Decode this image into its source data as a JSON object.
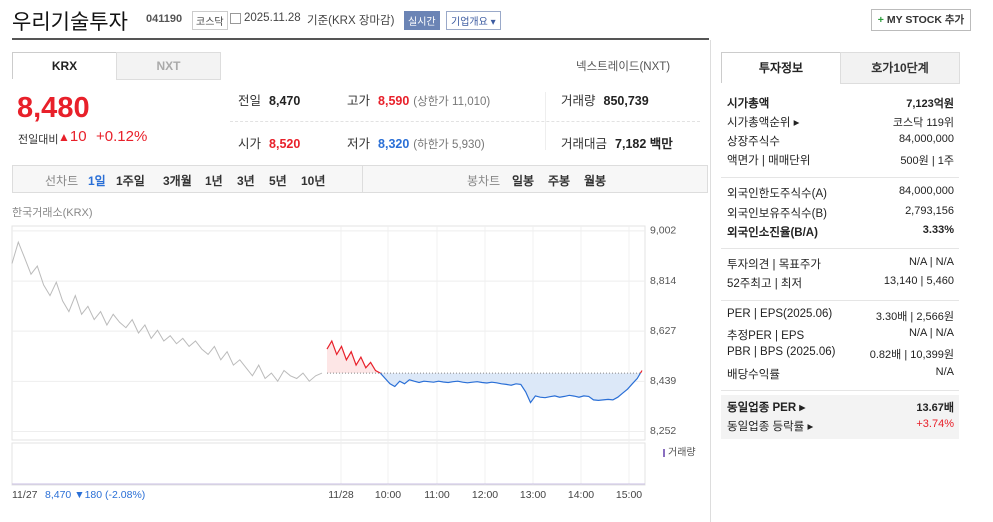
{
  "header": {
    "name": "우리기술투자",
    "code": "041190",
    "market": "코스닥",
    "date": "2025.11.28",
    "basis": "기준(KRX 장마감)",
    "realtime": "실시간",
    "overview": "기업개요",
    "mystock": "MY STOCK 추가"
  },
  "tabs": [
    "KRX",
    "NXT"
  ],
  "nxt_link": "넥스트레이드(NXT)",
  "price": {
    "now": "8,480",
    "change_label": "전일대비",
    "change": "10",
    "rate": "+0.12%"
  },
  "quote": [
    {
      "label": "전일",
      "value": "8,470",
      "color": "#222222"
    },
    {
      "label": "고가",
      "value": "8,590",
      "note": "(상한가 11,010)",
      "color": "#e8202a"
    },
    {
      "label": "거래량",
      "value": "850,739",
      "color": "#222222"
    },
    {
      "label": "시가",
      "value": "8,520",
      "color": "#e8202a"
    },
    {
      "label": "저가",
      "value": "8,320",
      "note": "(하한가 5,930)",
      "color": "#2a6fd6"
    },
    {
      "label": "거래대금",
      "value": "7,182 백만",
      "color": "#222222"
    }
  ],
  "range": {
    "line_label": "선차트",
    "line": [
      "1일",
      "1주일",
      "3개월",
      "1년",
      "3년",
      "5년",
      "10년"
    ],
    "candle_label": "봉차트",
    "candle": [
      "일봉",
      "주봉",
      "월봉"
    ]
  },
  "chart": {
    "type": "line",
    "source": "한국거래소(KRX)",
    "ylim": [
      8235,
      9020
    ],
    "yticks": [
      {
        "value": 9002,
        "label": "9,002"
      },
      {
        "value": 8814,
        "label": "8,814"
      },
      {
        "value": 8627,
        "label": "8,627"
      },
      {
        "value": 8439,
        "label": "8,439"
      },
      {
        "value": 8252,
        "label": "8,252"
      }
    ],
    "xticks": [
      "11/27",
      "11/28",
      "10:00",
      "11:00",
      "12:00",
      "13:00",
      "14:00",
      "15:00"
    ],
    "prev_close_summary": "8,470 ▼180 (-2.08%)",
    "baseline": 8470,
    "volume_label": "거래량",
    "series": [
      {
        "color": "#bbbbbb",
        "values": [
          8880,
          8960,
          8900,
          8840,
          8870,
          8800,
          8760,
          8810,
          8740,
          8700,
          8760,
          8690,
          8720,
          8670,
          8700,
          8650,
          8690,
          8660,
          8640,
          8670,
          8620,
          8650,
          8600,
          8630,
          8590,
          8610,
          8580,
          8600,
          8570,
          8590,
          8560,
          8540,
          8570,
          8520,
          8550,
          8500,
          8520,
          8490,
          8460,
          8500,
          8450,
          8470,
          8440,
          8480,
          8460,
          8450,
          8470,
          8440,
          8460,
          8470
        ]
      },
      {
        "color": "#2a6fd6",
        "up_color": "#e8202a",
        "values": [
          8560,
          8590,
          8540,
          8570,
          8520,
          8550,
          8500,
          8530,
          8490,
          8510,
          8480,
          8470,
          8450,
          8430,
          8420,
          8440,
          8430,
          8445,
          8440,
          8435,
          8440,
          8438,
          8436,
          8440,
          8437,
          8435,
          8438,
          8440,
          8436,
          8434,
          8436,
          8438,
          8435,
          8433,
          8436,
          8434,
          8430,
          8428,
          8425,
          8430,
          8428,
          8400,
          8360,
          8385,
          8380,
          8378,
          8382,
          8385,
          8380,
          8383,
          8387,
          8384,
          8380,
          8385,
          8383,
          8370,
          8368,
          8370,
          8372,
          8370,
          8380,
          8395,
          8410,
          8430,
          8450,
          8480
        ]
      }
    ]
  },
  "info_tabs": [
    "투자정보",
    "호가10단계"
  ],
  "info": [
    [
      {
        "label": "시가총액",
        "value": "7,123억원",
        "strong": true
      },
      {
        "label": "시가총액순위 ▸",
        "value": "코스닥 119위"
      },
      {
        "label": "상장주식수",
        "value": "84,000,000"
      },
      {
        "label": "액면가 | 매매단위",
        "value": "500원 | 1주"
      }
    ],
    [
      {
        "label": "외국인한도주식수(A)",
        "value": "84,000,000"
      },
      {
        "label": "외국인보유주식수(B)",
        "value": "2,793,156"
      },
      {
        "label": "외국인소진율(B/A)",
        "value": "3.33%",
        "strong": true
      }
    ],
    [
      {
        "label": "투자의견 | 목표주가",
        "value": "N/A | N/A"
      },
      {
        "label": "52주최고 | 최저",
        "value": "13,140 | 5,460"
      }
    ],
    [
      {
        "label": "PER | EPS(2025.06)",
        "value": "3.30배 | 2,566원"
      },
      {
        "label": "추정PER | EPS",
        "value": "N/A | N/A"
      },
      {
        "label": "PBR | BPS (2025.06)",
        "value": "0.82배 | 10,399원"
      },
      {
        "label": "배당수익률",
        "value": "N/A"
      }
    ],
    [
      {
        "label": "동일업종 PER ▸",
        "value": "13.67배",
        "strong": true
      },
      {
        "label": "동일업종 등락률 ▸",
        "value": "+3.74%",
        "color": "#e8202a"
      }
    ]
  ]
}
